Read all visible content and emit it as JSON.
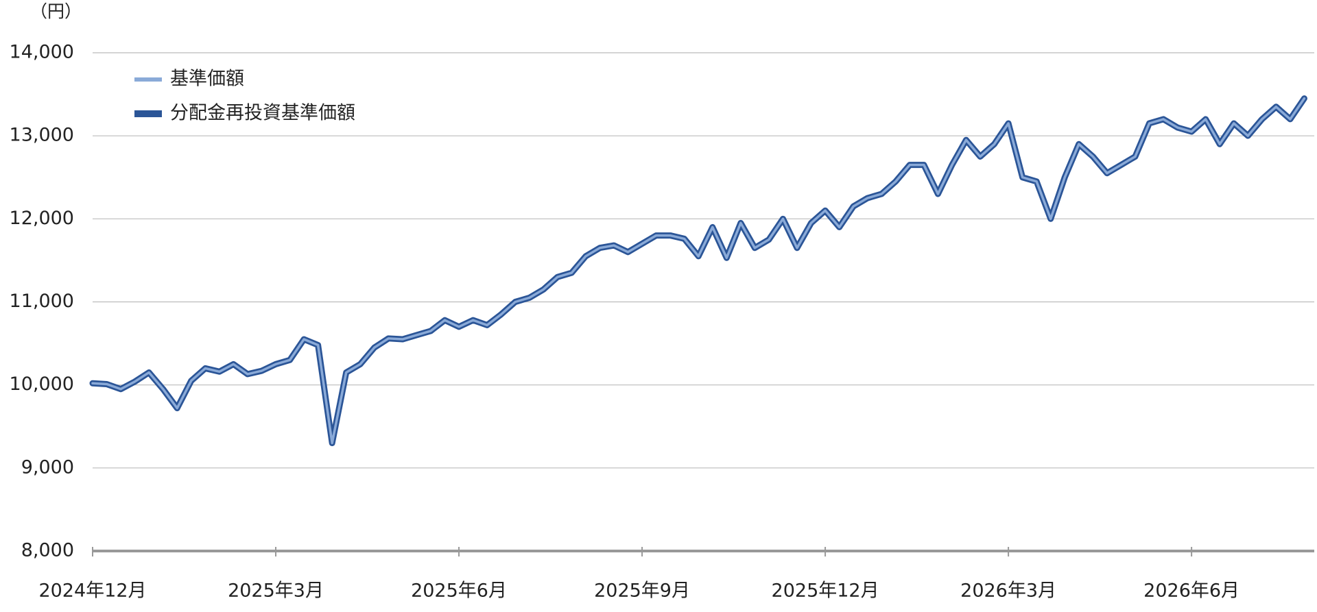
{
  "chart_data": {
    "type": "line",
    "y_label": "（円）",
    "categories": [
      "2024年12月",
      null,
      null,
      null,
      null,
      null,
      null,
      null,
      null,
      null,
      null,
      null,
      null,
      "2025年3月",
      null,
      null,
      null,
      null,
      null,
      null,
      null,
      null,
      null,
      null,
      null,
      null,
      "2025年6月",
      null,
      null,
      null,
      null,
      null,
      null,
      null,
      null,
      null,
      null,
      null,
      null,
      "2025年9月",
      null,
      null,
      null,
      null,
      null,
      null,
      null,
      null,
      null,
      null,
      null,
      null,
      "2025年12月",
      null,
      null,
      null,
      null,
      null,
      null,
      null,
      null,
      null,
      null,
      null,
      null,
      "2026年3月",
      null,
      null,
      null,
      null,
      null,
      null,
      null,
      null,
      null,
      null,
      null,
      null,
      "2026年6月",
      null,
      null,
      null,
      null,
      null,
      null,
      null,
      null
    ],
    "series": [
      {
        "name": "基準価額",
        "color": "#8aaad8",
        "values": [
          10020,
          10010,
          9950,
          10040,
          10150,
          9950,
          9720,
          10050,
          10200,
          10160,
          10250,
          10130,
          10170,
          10250,
          10300,
          10550,
          10480,
          9300,
          10150,
          10250,
          10450,
          10560,
          10550,
          10600,
          10650,
          10780,
          10700,
          10780,
          10720,
          10850,
          11000,
          11050,
          11150,
          11300,
          11350,
          11550,
          11650,
          11680,
          11600,
          11700,
          11800,
          11800,
          11760,
          11550,
          11900,
          11530,
          11950,
          11650,
          11750,
          12000,
          11650,
          11950,
          12100,
          11900,
          12150,
          12250,
          12300,
          12450,
          12650,
          12650,
          12300,
          12650,
          12950,
          12750,
          12900,
          13150,
          12500,
          12450,
          12000,
          12500,
          12900,
          12750,
          12550,
          12650,
          12750,
          13150,
          13200,
          13100,
          13050,
          13200,
          12900,
          13150,
          13000,
          13200,
          13350,
          13200,
          13450
        ]
      },
      {
        "name": "分配金再投資基準価額",
        "color": "#2b5597",
        "values": [
          10020,
          10010,
          9950,
          10040,
          10150,
          9950,
          9720,
          10050,
          10200,
          10160,
          10250,
          10130,
          10170,
          10250,
          10300,
          10550,
          10480,
          9300,
          10150,
          10250,
          10450,
          10560,
          10550,
          10600,
          10650,
          10780,
          10700,
          10780,
          10720,
          10850,
          11000,
          11050,
          11150,
          11300,
          11350,
          11550,
          11650,
          11680,
          11600,
          11700,
          11800,
          11800,
          11760,
          11550,
          11900,
          11530,
          11950,
          11650,
          11750,
          12000,
          11650,
          11950,
          12100,
          11900,
          12150,
          12250,
          12300,
          12450,
          12650,
          12650,
          12300,
          12650,
          12950,
          12750,
          12900,
          13150,
          12500,
          12450,
          12000,
          12500,
          12900,
          12750,
          12550,
          12650,
          12750,
          13150,
          13200,
          13100,
          13050,
          13200,
          12900,
          13150,
          13000,
          13200,
          13350,
          13200,
          13450
        ]
      }
    ],
    "ylim": [
      8000,
      14000
    ],
    "yticks": [
      {
        "value": 8000,
        "label": "8,000"
      },
      {
        "value": 9000,
        "label": "9,000"
      },
      {
        "value": 10000,
        "label": "10,000"
      },
      {
        "value": 11000,
        "label": "11,000"
      },
      {
        "value": 12000,
        "label": "12,000"
      },
      {
        "value": 13000,
        "label": "13,000"
      },
      {
        "value": 14000,
        "label": "14,000"
      }
    ],
    "grid": true
  }
}
